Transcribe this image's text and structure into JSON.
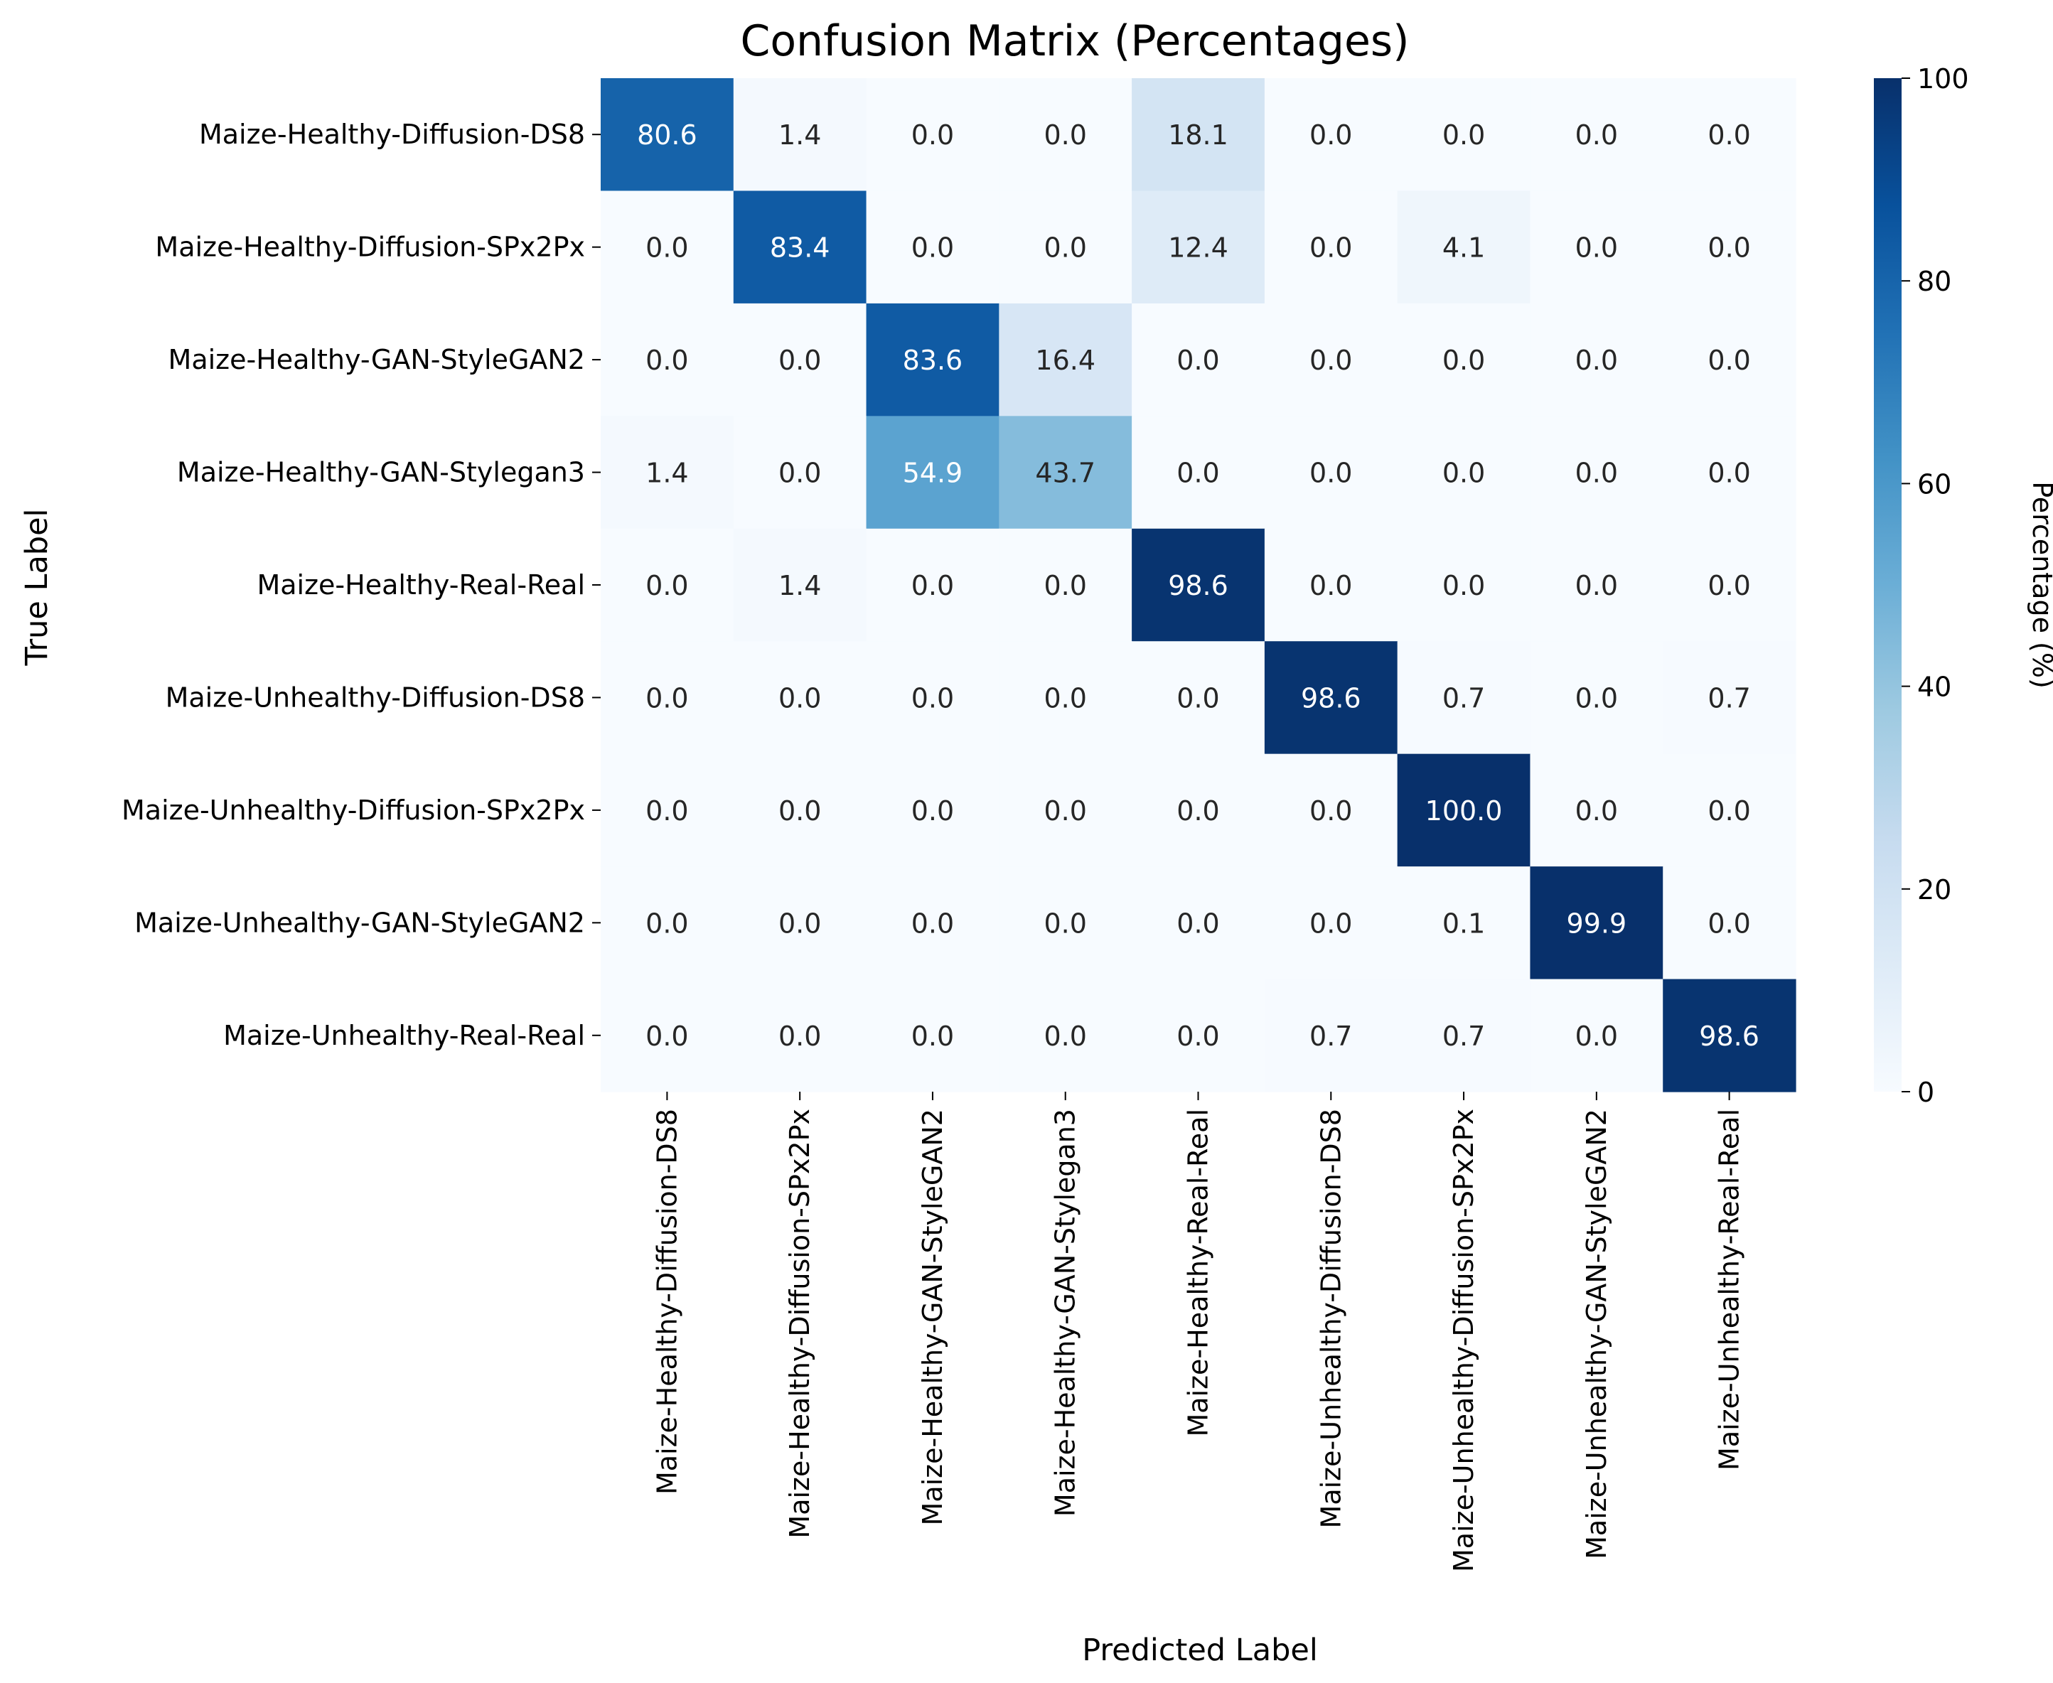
{
  "chart_data": {
    "type": "heatmap",
    "title": "Confusion Matrix (Percentages)",
    "xlabel": "Predicted Label",
    "ylabel": "True Label",
    "row_labels": [
      "Maize-Healthy-Diffusion-DS8",
      "Maize-Healthy-Diffusion-SPx2Px",
      "Maize-Healthy-GAN-StyleGAN2",
      "Maize-Healthy-GAN-Stylegan3",
      "Maize-Healthy-Real-Real",
      "Maize-Unhealthy-Diffusion-DS8",
      "Maize-Unhealthy-Diffusion-SPx2Px",
      "Maize-Unhealthy-GAN-StyleGAN2",
      "Maize-Unhealthy-Real-Real"
    ],
    "col_labels": [
      "Maize-Healthy-Diffusion-DS8",
      "Maize-Healthy-Diffusion-SPx2Px",
      "Maize-Healthy-GAN-StyleGAN2",
      "Maize-Healthy-GAN-Stylegan3",
      "Maize-Healthy-Real-Real",
      "Maize-Unhealthy-Diffusion-DS8",
      "Maize-Unhealthy-Diffusion-SPx2Px",
      "Maize-Unhealthy-GAN-StyleGAN2",
      "Maize-Unhealthy-Real-Real"
    ],
    "values": [
      [
        80.6,
        1.4,
        0.0,
        0.0,
        18.1,
        0.0,
        0.0,
        0.0,
        0.0
      ],
      [
        0.0,
        83.4,
        0.0,
        0.0,
        12.4,
        0.0,
        4.1,
        0.0,
        0.0
      ],
      [
        0.0,
        0.0,
        83.6,
        16.4,
        0.0,
        0.0,
        0.0,
        0.0,
        0.0
      ],
      [
        1.4,
        0.0,
        54.9,
        43.7,
        0.0,
        0.0,
        0.0,
        0.0,
        0.0
      ],
      [
        0.0,
        1.4,
        0.0,
        0.0,
        98.6,
        0.0,
        0.0,
        0.0,
        0.0
      ],
      [
        0.0,
        0.0,
        0.0,
        0.0,
        0.0,
        98.6,
        0.7,
        0.0,
        0.7
      ],
      [
        0.0,
        0.0,
        0.0,
        0.0,
        0.0,
        0.0,
        100.0,
        0.0,
        0.0
      ],
      [
        0.0,
        0.0,
        0.0,
        0.0,
        0.0,
        0.0,
        0.1,
        99.9,
        0.0
      ],
      [
        0.0,
        0.0,
        0.0,
        0.0,
        0.0,
        0.7,
        0.7,
        0.0,
        98.6
      ]
    ],
    "value_format": "0.0",
    "colorbar": {
      "label": "Percentage (%)",
      "range": [
        0,
        100
      ],
      "ticks": [
        0,
        20,
        40,
        60,
        80,
        100
      ],
      "colormap": "Blues",
      "stops": [
        "#f7fbff",
        "#deebf7",
        "#c6dbef",
        "#9ecae1",
        "#6baed6",
        "#4292c6",
        "#2171b5",
        "#08519c",
        "#08306b"
      ]
    },
    "annotation_colors": {
      "light": "#ffffff",
      "dark": "#262626"
    },
    "grid": false
  }
}
